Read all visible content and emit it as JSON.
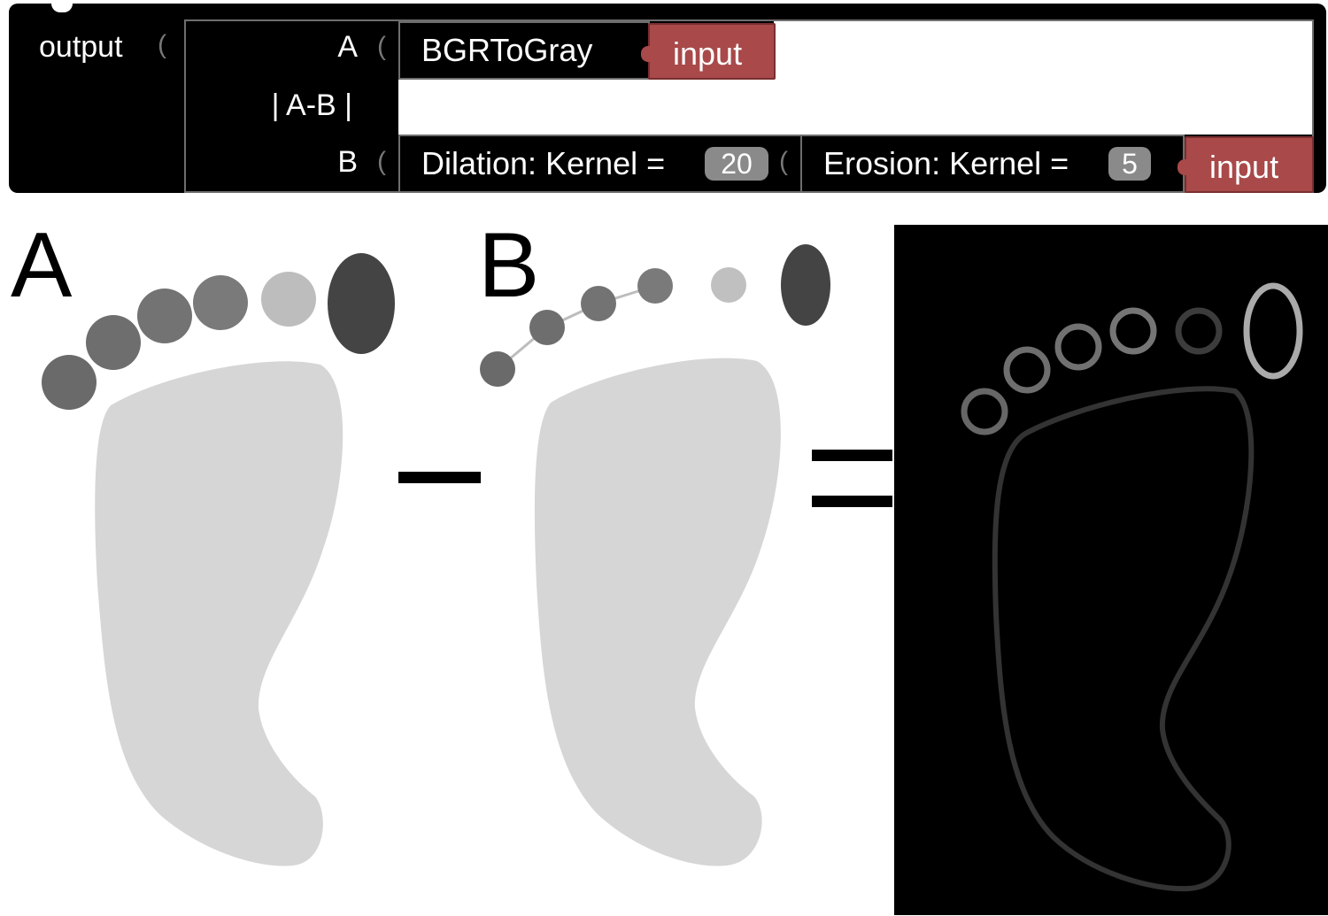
{
  "block": {
    "output_label": "output",
    "row_a_label": "A",
    "row_ab_label": "| A-B |",
    "row_b_label": "B",
    "bgr_to_gray_label": "BGRToGray",
    "input_label_a": "input",
    "dilation_label": "Dilation: Kernel =",
    "dilation_kernel": "20",
    "erosion_label": "Erosion: Kernel =",
    "erosion_kernel": "5",
    "input_label_b": "input"
  },
  "diagram": {
    "label_a": "A",
    "label_b": "B",
    "colors": {
      "foot_fill": "#d6d6d6",
      "toe_dark": "#444444",
      "toe_mid": "#777777",
      "toe_light": "#c0c0c0",
      "result_bg": "#000000"
    }
  }
}
